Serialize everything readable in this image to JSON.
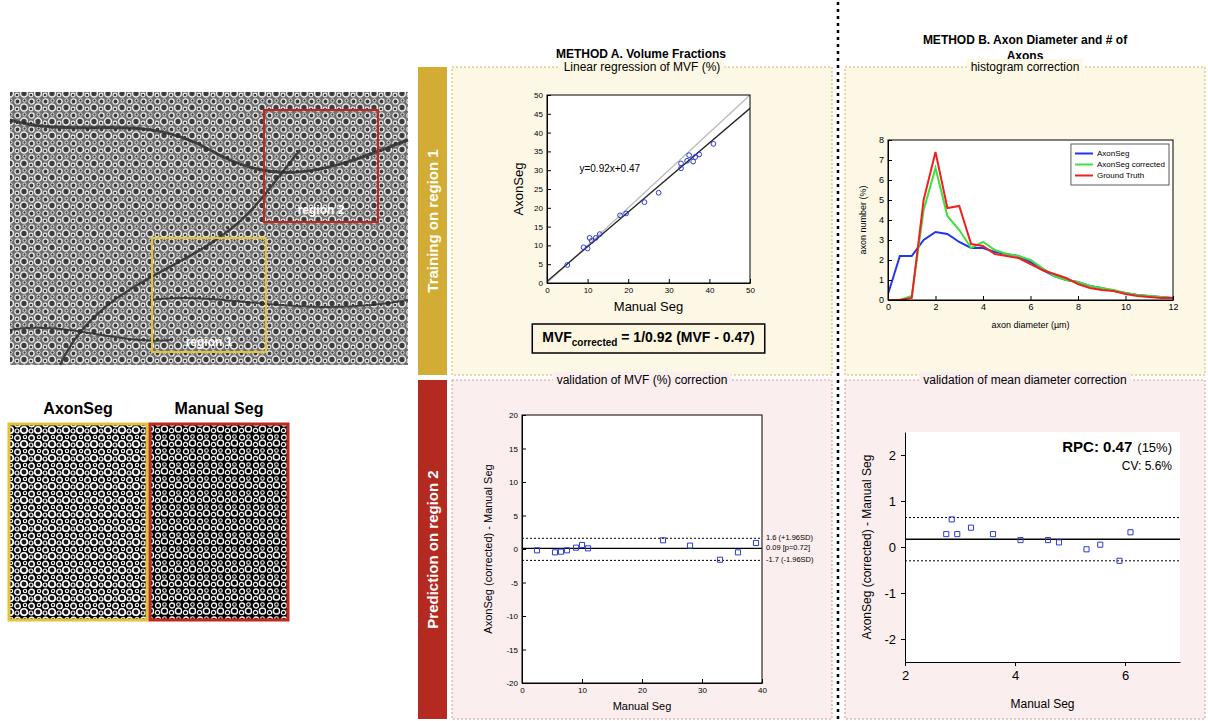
{
  "figure": {
    "headers": [
      "METHOD A. Volume Fractions",
      "METHOD B. Axon Diameter and # of Axons"
    ],
    "rows": [
      "Training on region 1",
      "Prediction on region 2"
    ],
    "regions": [
      "region 1",
      "region 2"
    ],
    "segmentations": [
      "AxonSeg",
      "Manual Seg"
    ]
  },
  "chart_data": [
    {
      "type": "scatter",
      "title": "Linear regression of MVF (%)",
      "x_label": "Manual Seg",
      "y_label": "AxonSeg",
      "x": [
        5,
        9,
        10,
        10.5,
        11,
        12,
        13,
        18,
        19.5,
        24,
        27.5,
        33,
        33,
        34.5,
        35,
        36,
        36.5,
        37.5,
        41
      ],
      "values": [
        4.8,
        9.5,
        9.2,
        12,
        11.2,
        12,
        13,
        18,
        18.5,
        21.5,
        24,
        30.5,
        31.8,
        32.5,
        34,
        32.3,
        33.5,
        34.2,
        37
      ],
      "color": "#2b3bd6",
      "marker": "circle",
      "xlim": [
        0,
        50
      ],
      "ylim": [
        0,
        50
      ],
      "xticks": [
        0,
        10,
        20,
        30,
        40,
        50
      ],
      "yticks": [
        0,
        5,
        10,
        15,
        20,
        25,
        30,
        35,
        40,
        45,
        50
      ],
      "fit": {
        "slope": 0.92,
        "intercept": 0.47,
        "color": "#222222"
      },
      "identity": {
        "slope": 1,
        "intercept": 0,
        "color": "#bbbbbb"
      },
      "annotation": "y=0.92x+0.47",
      "formula": {
        "base": "MVF",
        "subscript": "corrected",
        "rest": " = 1/0.92 (MVF - 0.47)"
      }
    },
    {
      "type": "line",
      "title": "histogram correction",
      "x_label": "axon diameter (µm)",
      "y_label": "axon number (%)",
      "x": [
        0,
        0.5,
        1,
        1.5,
        2,
        2.5,
        3,
        3.5,
        4,
        4.5,
        5,
        5.5,
        6,
        6.5,
        7,
        7.5,
        8,
        8.5,
        9,
        9.5,
        10,
        10.5,
        11,
        11.5,
        12
      ],
      "series": [
        {
          "name": "AxonSeg",
          "color": "#1f35f0",
          "values": [
            0.3,
            2.2,
            2.2,
            3.0,
            3.4,
            3.3,
            2.9,
            2.6,
            2.6,
            2.4,
            2.3,
            2.2,
            1.9,
            1.5,
            1.2,
            1.0,
            0.9,
            0.7,
            0.6,
            0.45,
            0.35,
            0.25,
            0.2,
            0.15,
            0.1
          ]
        },
        {
          "name": "AxonSeg corrected",
          "color": "#3ee03e",
          "values": [
            0,
            0,
            0.2,
            4.5,
            6.6,
            4.2,
            3.5,
            2.6,
            2.9,
            2.5,
            2.3,
            2.2,
            2.0,
            1.6,
            1.2,
            1.0,
            0.9,
            0.7,
            0.6,
            0.5,
            0.35,
            0.25,
            0.2,
            0.15,
            0.1
          ]
        },
        {
          "name": "Ground Truth",
          "color": "#f02020",
          "values": [
            0,
            0,
            0.1,
            5.0,
            7.4,
            4.6,
            4.7,
            2.8,
            2.7,
            2.3,
            2.2,
            2.1,
            1.8,
            1.5,
            1.3,
            1.1,
            0.8,
            0.6,
            0.5,
            0.45,
            0.3,
            0.2,
            0.15,
            0.1,
            0.1
          ]
        }
      ],
      "xlim": [
        0,
        12
      ],
      "ylim": [
        0,
        8
      ],
      "xticks": [
        0,
        2,
        4,
        6,
        8,
        10,
        12
      ],
      "yticks": [
        0,
        1,
        2,
        3,
        4,
        5,
        6,
        7,
        8
      ],
      "legend": "upper right"
    },
    {
      "type": "scatter",
      "title": "validation of MVF (%) correction",
      "x_label": "Manual Seg",
      "y_label": "AxonSeg (corrected) - Manual Seg",
      "x": [
        2.5,
        5.5,
        6.5,
        7.5,
        9,
        10,
        11,
        23.5,
        28,
        33,
        36,
        39
      ],
      "values": [
        -0.2,
        -0.5,
        -0.4,
        -0.2,
        0.2,
        0.6,
        0.1,
        1.3,
        0.5,
        -1.6,
        -0.5,
        0.9
      ],
      "color": "#2b3bd6",
      "marker": "square",
      "xlim": [
        0,
        40
      ],
      "ylim": [
        -20,
        20
      ],
      "xticks": [
        0,
        10,
        20,
        30,
        40
      ],
      "yticks": [
        -20,
        -15,
        -10,
        -5,
        0,
        5,
        10,
        15,
        20
      ],
      "ref_lines": [
        {
          "value": 1.6,
          "label": "1.6 (+1.96SD)",
          "line_style": "dotted"
        },
        {
          "value": 0.09,
          "label": "0.09 [p=0.72]",
          "line_style": "solid"
        },
        {
          "value": -1.7,
          "label": "-1.7 (-1.96SD)",
          "line_style": "dotted"
        }
      ]
    },
    {
      "type": "scatter",
      "title": "validation of mean diameter correction",
      "x_label": "Manual Seg",
      "y_label": "AxonSeg (corrected) - Manual Seg",
      "x": [
        2.75,
        2.85,
        2.95,
        3.2,
        3.6,
        4.1,
        4.6,
        4.8,
        5.3,
        5.55,
        5.9,
        6.1
      ],
      "values": [
        0.28,
        0.6,
        0.28,
        0.42,
        0.28,
        0.15,
        0.15,
        0.1,
        -0.05,
        0.05,
        -0.3,
        0.32
      ],
      "color": "#2b3bd6",
      "marker": "square",
      "xlim": [
        2,
        7
      ],
      "ylim": [
        -2.5,
        2.5
      ],
      "xticks": [
        2,
        4,
        6
      ],
      "yticks": [
        -2,
        -1,
        0,
        1,
        2
      ],
      "ref_lines": [
        {
          "value": 0.64,
          "line_style": "dotted"
        },
        {
          "value": 0.17,
          "line_style": "solid"
        },
        {
          "value": -0.3,
          "line_style": "dotted"
        }
      ],
      "annotations": [
        "RPC: 0.47",
        "(15%)",
        "CV: 5.6%"
      ]
    }
  ]
}
